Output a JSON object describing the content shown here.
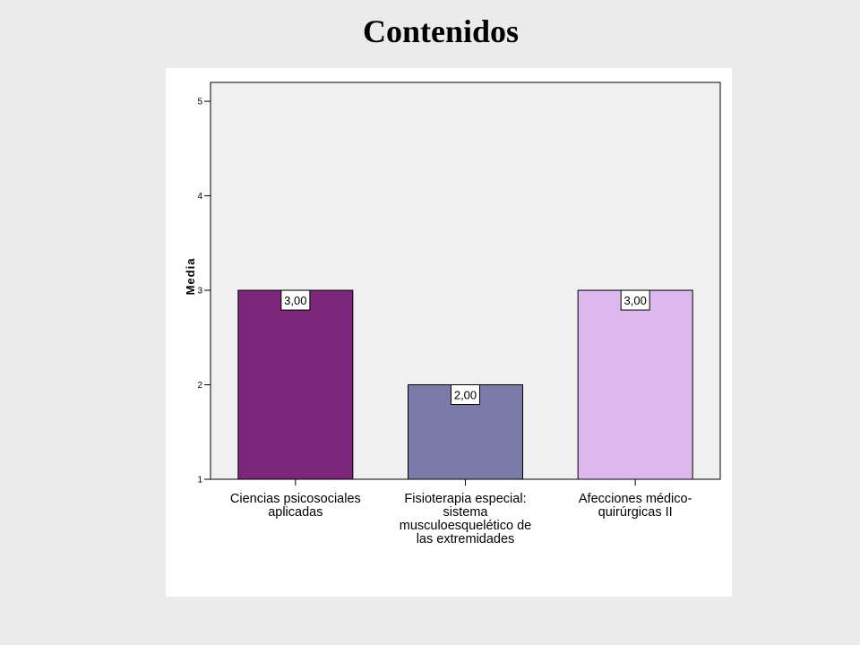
{
  "page": {
    "title": "Contenidos"
  },
  "chart_data": {
    "type": "bar",
    "categories": [
      [
        "Ciencias psicosociales",
        "aplicadas"
      ],
      [
        "Fisioterapia especial:",
        "sistema",
        "musculoesquelético de",
        "las extremidades"
      ],
      [
        "Afecciones médico-",
        "quirúrgicas II"
      ]
    ],
    "values": [
      3,
      2,
      3
    ],
    "data_labels": [
      "3,00",
      "2,00",
      "3,00"
    ],
    "bar_colors": [
      "#7b287b",
      "#7b7ba8",
      "#ddb8ef"
    ],
    "plot_background": "#f0f0f0",
    "ylabel": "Media",
    "xlabel": "",
    "ylim": [
      1,
      5.2
    ],
    "yticks": [
      1,
      2,
      3,
      4,
      5
    ],
    "grid": false,
    "legend": "none"
  }
}
